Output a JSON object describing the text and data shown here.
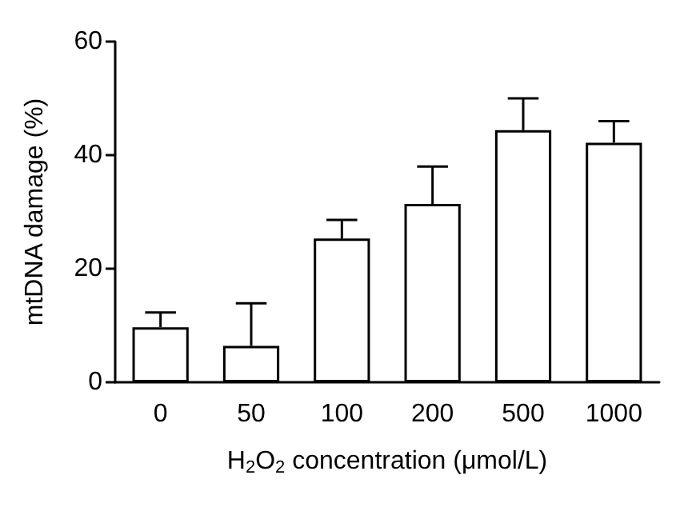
{
  "chart_data": {
    "type": "bar",
    "xlabel": "H$_{2}$O$_{2}$ concentration (μmol/L)",
    "ylabel": "mtDNA damage (%)",
    "categories": [
      "0",
      "50",
      "100",
      "200",
      "500",
      "1000"
    ],
    "values": [
      9.7,
      6.4,
      25.3,
      31.4,
      44.4,
      42.2
    ],
    "errors": [
      [
        9.7,
        12.3
      ],
      [
        6.4,
        13.9
      ],
      [
        25.3,
        28.6
      ],
      [
        31.4,
        38
      ],
      [
        44.4,
        50
      ],
      [
        42.2,
        46
      ]
    ],
    "color": "#ffffff",
    "ylim": [
      0,
      60
    ],
    "yticks": [
      0,
      20,
      40,
      60
    ]
  }
}
